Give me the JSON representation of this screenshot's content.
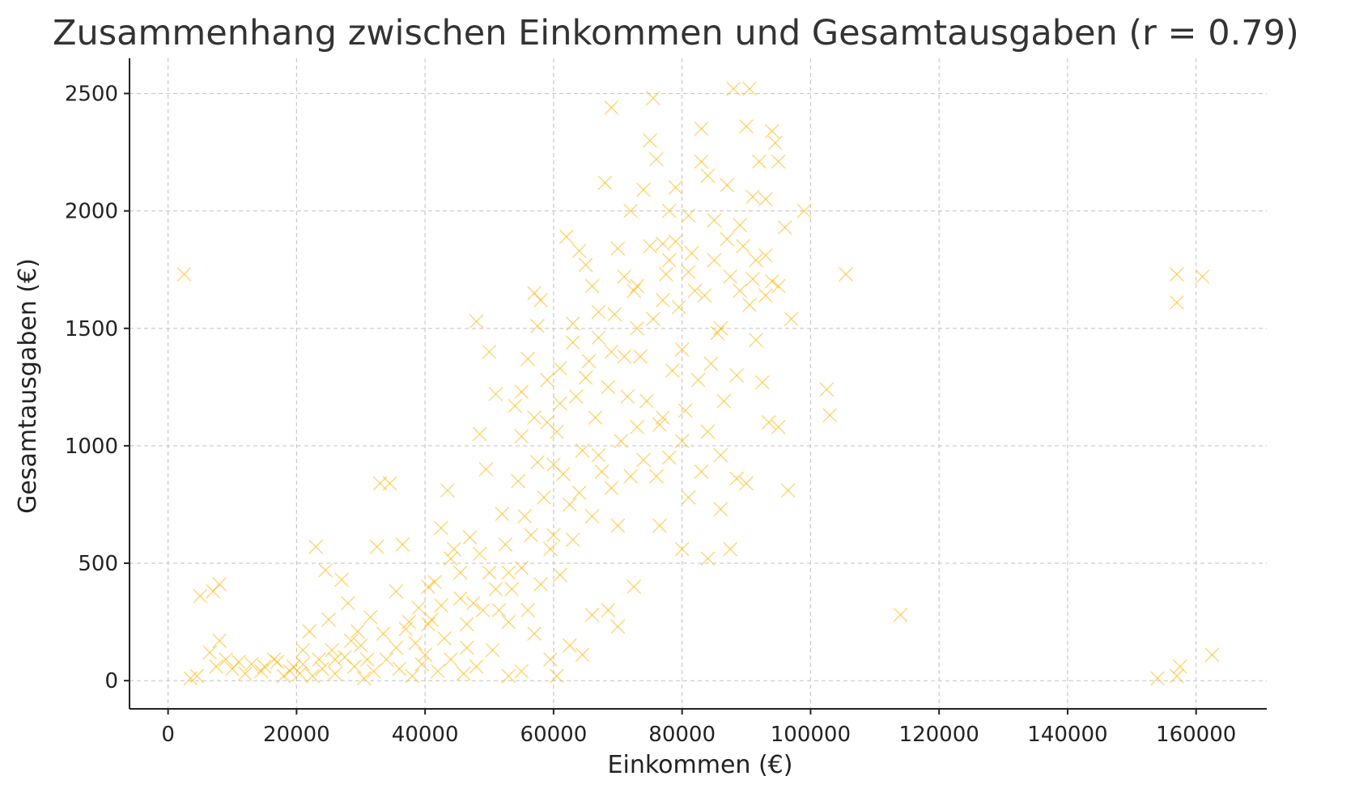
{
  "chart_data": {
    "type": "scatter",
    "title": "Zusammenhang zwischen Einkommen und Gesamtausgaben (r = 0.79)",
    "xlabel": "Einkommen (€)",
    "ylabel": "Gesamtausgaben (€)",
    "xlim": [
      -6000,
      171000
    ],
    "ylim": [
      -120,
      2650
    ],
    "x_ticks": [
      0,
      20000,
      40000,
      60000,
      80000,
      100000,
      120000,
      140000,
      160000
    ],
    "y_ticks": [
      0,
      500,
      1000,
      1500,
      2000,
      2500
    ],
    "grid": true,
    "marker": "x",
    "color": "#FFB300",
    "series": [
      {
        "points": [
          [
            2500,
            1730
          ],
          [
            5000,
            360
          ],
          [
            7000,
            380
          ],
          [
            8000,
            410
          ],
          [
            6500,
            120
          ],
          [
            8000,
            170
          ],
          [
            7500,
            60
          ],
          [
            3500,
            10
          ],
          [
            10000,
            50
          ],
          [
            12000,
            30
          ],
          [
            9000,
            90
          ],
          [
            4500,
            20
          ],
          [
            15000,
            60
          ],
          [
            17000,
            80
          ],
          [
            19000,
            40
          ],
          [
            21000,
            70
          ],
          [
            23000,
            570
          ],
          [
            24500,
            470
          ],
          [
            22000,
            210
          ],
          [
            25000,
            260
          ],
          [
            27000,
            430
          ],
          [
            28000,
            330
          ],
          [
            29500,
            210
          ],
          [
            26000,
            90
          ],
          [
            30000,
            150
          ],
          [
            31500,
            270
          ],
          [
            32500,
            570
          ],
          [
            33000,
            840
          ],
          [
            34500,
            840
          ],
          [
            36500,
            580
          ],
          [
            35500,
            380
          ],
          [
            37500,
            250
          ],
          [
            38500,
            160
          ],
          [
            39500,
            70
          ],
          [
            40500,
            240
          ],
          [
            41500,
            420
          ],
          [
            42500,
            650
          ],
          [
            43500,
            810
          ],
          [
            44500,
            560
          ],
          [
            45500,
            350
          ],
          [
            46500,
            140
          ],
          [
            47500,
            330
          ],
          [
            48500,
            1050
          ],
          [
            48000,
            1530
          ],
          [
            49500,
            900
          ],
          [
            50000,
            1400
          ],
          [
            51000,
            1220
          ],
          [
            52000,
            710
          ],
          [
            53000,
            460
          ],
          [
            54000,
            1170
          ],
          [
            55000,
            1230
          ],
          [
            56000,
            1370
          ],
          [
            57000,
            1650
          ],
          [
            57500,
            1510
          ],
          [
            58000,
            1620
          ],
          [
            59000,
            1100
          ],
          [
            60000,
            920
          ],
          [
            61000,
            1330
          ],
          [
            62000,
            1890
          ],
          [
            63000,
            1520
          ],
          [
            64000,
            1830
          ],
          [
            65000,
            1770
          ],
          [
            66000,
            1680
          ],
          [
            67000,
            1460
          ],
          [
            68000,
            2120
          ],
          [
            69000,
            2440
          ],
          [
            70000,
            1840
          ],
          [
            71000,
            1380
          ],
          [
            72000,
            2000
          ],
          [
            73000,
            1680
          ],
          [
            74000,
            2090
          ],
          [
            75000,
            2300
          ],
          [
            75500,
            2480
          ],
          [
            76000,
            2220
          ],
          [
            77000,
            1860
          ],
          [
            78000,
            2000
          ],
          [
            79000,
            1870
          ],
          [
            80000,
            1410
          ],
          [
            81000,
            1980
          ],
          [
            82000,
            1660
          ],
          [
            83000,
            2350
          ],
          [
            84000,
            2150
          ],
          [
            85000,
            1790
          ],
          [
            86000,
            1500
          ],
          [
            87000,
            2110
          ],
          [
            88000,
            2520
          ],
          [
            89000,
            1940
          ],
          [
            90000,
            2360
          ],
          [
            90500,
            2520
          ],
          [
            91000,
            1710
          ],
          [
            92000,
            2210
          ],
          [
            93000,
            2050
          ],
          [
            94000,
            2340
          ],
          [
            94500,
            2290
          ],
          [
            95000,
            2210
          ],
          [
            96000,
            1930
          ],
          [
            97000,
            1540
          ],
          [
            99000,
            2000
          ],
          [
            91500,
            1450
          ],
          [
            92500,
            1270
          ],
          [
            93500,
            1100
          ],
          [
            95000,
            1080
          ],
          [
            96500,
            810
          ],
          [
            90000,
            840
          ],
          [
            88500,
            860
          ],
          [
            87500,
            560
          ],
          [
            84000,
            520
          ],
          [
            86000,
            730
          ],
          [
            80000,
            560
          ],
          [
            76500,
            660
          ],
          [
            72500,
            400
          ],
          [
            70000,
            230
          ],
          [
            68500,
            300
          ],
          [
            66000,
            280
          ],
          [
            64500,
            110
          ],
          [
            62500,
            150
          ],
          [
            60500,
            20
          ],
          [
            59500,
            90
          ],
          [
            57000,
            200
          ],
          [
            55000,
            40
          ],
          [
            53000,
            20
          ],
          [
            50500,
            130
          ],
          [
            48000,
            60
          ],
          [
            46000,
            30
          ],
          [
            44000,
            90
          ],
          [
            42000,
            40
          ],
          [
            40000,
            110
          ],
          [
            38000,
            20
          ],
          [
            36000,
            50
          ],
          [
            34000,
            90
          ],
          [
            32000,
            40
          ],
          [
            30500,
            10
          ],
          [
            29000,
            60
          ],
          [
            27500,
            100
          ],
          [
            26000,
            30
          ],
          [
            24000,
            50
          ],
          [
            22500,
            20
          ],
          [
            21000,
            130
          ],
          [
            19500,
            60
          ],
          [
            18000,
            20
          ],
          [
            16500,
            90
          ],
          [
            14500,
            40
          ],
          [
            13000,
            70
          ],
          [
            11000,
            80
          ],
          [
            40500,
            400
          ],
          [
            42500,
            320
          ],
          [
            44000,
            520
          ],
          [
            45500,
            460
          ],
          [
            47000,
            610
          ],
          [
            48500,
            540
          ],
          [
            50000,
            460
          ],
          [
            51500,
            300
          ],
          [
            52500,
            580
          ],
          [
            53500,
            390
          ],
          [
            54500,
            850
          ],
          [
            55500,
            700
          ],
          [
            56500,
            620
          ],
          [
            57500,
            930
          ],
          [
            58500,
            780
          ],
          [
            59500,
            560
          ],
          [
            60500,
            1060
          ],
          [
            61500,
            880
          ],
          [
            62500,
            750
          ],
          [
            63500,
            1210
          ],
          [
            64500,
            980
          ],
          [
            65500,
            1360
          ],
          [
            66500,
            1120
          ],
          [
            67500,
            890
          ],
          [
            68500,
            1250
          ],
          [
            69500,
            1560
          ],
          [
            70500,
            1020
          ],
          [
            71500,
            1210
          ],
          [
            72500,
            1660
          ],
          [
            73500,
            1380
          ],
          [
            74500,
            1190
          ],
          [
            75500,
            1540
          ],
          [
            76500,
            1090
          ],
          [
            77500,
            1730
          ],
          [
            78500,
            1320
          ],
          [
            79500,
            1590
          ],
          [
            80500,
            1150
          ],
          [
            81500,
            1820
          ],
          [
            82500,
            1280
          ],
          [
            83500,
            1640
          ],
          [
            84500,
            1350
          ],
          [
            85500,
            1480
          ],
          [
            86500,
            1190
          ],
          [
            87500,
            1720
          ],
          [
            88500,
            1300
          ],
          [
            89500,
            1850
          ],
          [
            90500,
            1600
          ],
          [
            91500,
            1790
          ],
          [
            93000,
            1640
          ],
          [
            94000,
            1700
          ],
          [
            103000,
            1130
          ],
          [
            102500,
            1240
          ],
          [
            105500,
            1730
          ],
          [
            114000,
            280
          ],
          [
            154000,
            10
          ],
          [
            157000,
            1730
          ],
          [
            157000,
            1610
          ],
          [
            157500,
            60
          ],
          [
            157000,
            20
          ],
          [
            161000,
            1720
          ],
          [
            162500,
            110
          ],
          [
            43000,
            180
          ],
          [
            41000,
            260
          ],
          [
            39000,
            310
          ],
          [
            37000,
            220
          ],
          [
            35500,
            140
          ],
          [
            33500,
            200
          ],
          [
            31000,
            90
          ],
          [
            28500,
            170
          ],
          [
            25500,
            130
          ],
          [
            23500,
            90
          ],
          [
            20500,
            30
          ],
          [
            46500,
            240
          ],
          [
            49000,
            300
          ],
          [
            51000,
            390
          ],
          [
            53000,
            250
          ],
          [
            55000,
            480
          ],
          [
            56000,
            300
          ],
          [
            58000,
            410
          ],
          [
            60000,
            620
          ],
          [
            61000,
            450
          ],
          [
            63000,
            600
          ],
          [
            64000,
            800
          ],
          [
            66000,
            700
          ],
          [
            67000,
            960
          ],
          [
            69000,
            820
          ],
          [
            70000,
            660
          ],
          [
            72000,
            870
          ],
          [
            73000,
            1080
          ],
          [
            74000,
            940
          ],
          [
            76000,
            870
          ],
          [
            77000,
            1120
          ],
          [
            78000,
            950
          ],
          [
            80000,
            1020
          ],
          [
            81000,
            780
          ],
          [
            83000,
            890
          ],
          [
            84000,
            1060
          ],
          [
            86000,
            960
          ],
          [
            55000,
            1040
          ],
          [
            57000,
            1120
          ],
          [
            59000,
            1280
          ],
          [
            61000,
            1180
          ],
          [
            63000,
            1440
          ],
          [
            65000,
            1290
          ],
          [
            67000,
            1570
          ],
          [
            69000,
            1400
          ],
          [
            71000,
            1720
          ],
          [
            73000,
            1500
          ],
          [
            75000,
            1850
          ],
          [
            77000,
            1620
          ],
          [
            79000,
            2100
          ],
          [
            81000,
            1740
          ],
          [
            83000,
            2210
          ],
          [
            85000,
            1960
          ],
          [
            87000,
            1880
          ],
          [
            89000,
            1660
          ],
          [
            91000,
            2060
          ],
          [
            93000,
            1810
          ],
          [
            95000,
            1680
          ],
          [
            78000,
            1790
          ]
        ]
      }
    ]
  }
}
